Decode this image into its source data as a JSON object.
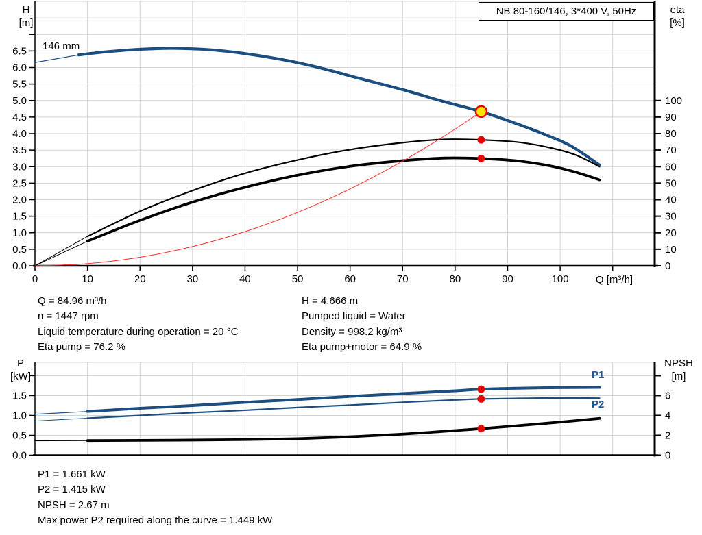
{
  "header": {
    "title": "NB 80-160/146, 3*400 V, 50Hz"
  },
  "axis_labels": {
    "h": "H",
    "h_unit": "[m]",
    "eta": "eta",
    "eta_unit": "[%]",
    "q": "Q [m³/h]",
    "p": "P",
    "p_unit": "[kW]",
    "npsh": "NPSH",
    "npsh_unit": "[m]"
  },
  "curve_labels": {
    "impeller": "146 mm",
    "p1": "P1",
    "p2": "P2"
  },
  "details_upper": {
    "left": [
      "Q = 84.96 m³/h",
      "n = 1447 rpm",
      "Liquid temperature during operation = 20 °C",
      "Eta pump = 76.2 %"
    ],
    "right": [
      "H = 4.666 m",
      "Pumped liquid = Water",
      "Density = 998.2 kg/m³",
      "Eta pump+motor = 64.9 %"
    ]
  },
  "details_lower": [
    "P1 = 1.661 kW",
    "P2 = 1.415 kW",
    "NPSH = 2.67 m",
    "Max power P2 required along the curve = 1.449 kW"
  ],
  "colors": {
    "curve_blue": "#1c4e80",
    "system_red": "#ff2a2a",
    "marker_red": "#e60000",
    "marker_yellow": "#ffe600",
    "grid": "#d3d3d3",
    "axis": "#000000"
  },
  "chart_data": [
    {
      "id": "head-flow",
      "type": "line",
      "title": "NB 80-160/146, 3*400 V, 50Hz",
      "xlabel": "Q [m³/h]",
      "ylabel_left": "H [m]",
      "ylabel_right": "eta [%]",
      "xlim": [
        0,
        118
      ],
      "ylim_left": [
        0,
        8
      ],
      "ylim_right": [
        0,
        160
      ],
      "grid": true,
      "x_grid": [
        10,
        20,
        30,
        40,
        50,
        60,
        70,
        80,
        90,
        100,
        110
      ],
      "y_grid": [
        0.5,
        1,
        1.5,
        2,
        2.5,
        3,
        3.5,
        4,
        4.5,
        5,
        5.5,
        6,
        6.5,
        7,
        7.5
      ],
      "x_ticks": [
        {
          "v": 0,
          "l": "0"
        },
        {
          "v": 10,
          "l": "10"
        },
        {
          "v": 20,
          "l": "20"
        },
        {
          "v": 30,
          "l": "30"
        },
        {
          "v": 40,
          "l": "40"
        },
        {
          "v": 50,
          "l": "50"
        },
        {
          "v": 60,
          "l": "60"
        },
        {
          "v": 70,
          "l": "70"
        },
        {
          "v": 80,
          "l": "80"
        },
        {
          "v": 90,
          "l": "90"
        },
        {
          "v": 100,
          "l": "100"
        },
        {
          "v": 110,
          "l": ""
        }
      ],
      "y_ticks_left": [
        {
          "v": 0,
          "l": "0.0"
        },
        {
          "v": 0.5,
          "l": "0.5"
        },
        {
          "v": 1,
          "l": "1.0"
        },
        {
          "v": 1.5,
          "l": "1.5"
        },
        {
          "v": 2,
          "l": "2.0"
        },
        {
          "v": 2.5,
          "l": "2.5"
        },
        {
          "v": 3,
          "l": "3.0"
        },
        {
          "v": 3.5,
          "l": "3.5"
        },
        {
          "v": 4,
          "l": "4.0"
        },
        {
          "v": 4.5,
          "l": "4.5"
        },
        {
          "v": 5,
          "l": "5.0"
        },
        {
          "v": 5.5,
          "l": "5.5"
        },
        {
          "v": 6,
          "l": "6.0"
        },
        {
          "v": 6.5,
          "l": "6.5"
        },
        {
          "v": 7,
          "l": ""
        }
      ],
      "y_ticks_right": [
        {
          "v": 0,
          "l": "0"
        },
        {
          "v": 10,
          "l": "10"
        },
        {
          "v": 20,
          "l": "20"
        },
        {
          "v": 30,
          "l": "30"
        },
        {
          "v": 40,
          "l": "40"
        },
        {
          "v": 50,
          "l": "50"
        },
        {
          "v": 60,
          "l": "60"
        },
        {
          "v": 70,
          "l": "70"
        },
        {
          "v": 80,
          "l": "80"
        },
        {
          "v": 90,
          "l": "90"
        },
        {
          "v": 100,
          "l": "100"
        }
      ],
      "series": [
        {
          "name": "H curve 146 mm impeller",
          "axis": "left",
          "color": "#1c4e80",
          "segments": [
            {
              "w": 1.2,
              "pts": [
                [
                  0,
                  6.15
                ],
                [
                  8.3,
                  6.38
                ]
              ]
            },
            {
              "w": 4.2,
              "pts": [
                [
                  8.3,
                  6.38
                ],
                [
                  14,
                  6.48
                ],
                [
                  20,
                  6.55
                ],
                [
                  26,
                  6.58
                ],
                [
                  33,
                  6.54
                ],
                [
                  40,
                  6.42
                ],
                [
                  48,
                  6.21
                ],
                [
                  55,
                  5.96
                ],
                [
                  62,
                  5.66
                ],
                [
                  70,
                  5.33
                ],
                [
                  78,
                  4.96
                ],
                [
                  84.96,
                  4.666
                ],
                [
                  91,
                  4.34
                ],
                [
                  97,
                  3.98
                ],
                [
                  102,
                  3.63
                ],
                [
                  107.5,
                  3.05
                ]
              ]
            }
          ]
        },
        {
          "name": "eta pump",
          "axis": "right",
          "color": "#000000",
          "segments": [
            {
              "w": 1,
              "pts": [
                [
                  0,
                  0
                ],
                [
                  10,
                  17.8
                ]
              ]
            },
            {
              "w": 2.2,
              "pts": [
                [
                  10,
                  17.8
                ],
                [
                  20,
                  33
                ],
                [
                  30,
                  45.5
                ],
                [
                  40,
                  56
                ],
                [
                  50,
                  64
                ],
                [
                  60,
                  70.3
                ],
                [
                  70,
                  74.5
                ],
                [
                  78,
                  76.5
                ],
                [
                  85,
                  76.2
                ],
                [
                  92,
                  74.8
                ],
                [
                  98,
                  71.5
                ],
                [
                  103,
                  67
                ],
                [
                  107.5,
                  60
                ]
              ]
            }
          ]
        },
        {
          "name": "eta pump+motor",
          "axis": "right",
          "color": "#000000",
          "segments": [
            {
              "w": 1,
              "pts": [
                [
                  0,
                  0
                ],
                [
                  10,
                  14.9
                ]
              ]
            },
            {
              "w": 3.8,
              "pts": [
                [
                  10,
                  14.9
                ],
                [
                  20,
                  27.5
                ],
                [
                  30,
                  38.5
                ],
                [
                  40,
                  47.5
                ],
                [
                  50,
                  54.8
                ],
                [
                  60,
                  60.2
                ],
                [
                  70,
                  63.6
                ],
                [
                  78,
                  65.2
                ],
                [
                  85,
                  64.9
                ],
                [
                  92,
                  63.4
                ],
                [
                  98,
                  60.5
                ],
                [
                  103,
                  56.6
                ],
                [
                  107.5,
                  52
                ]
              ]
            }
          ]
        },
        {
          "name": "system curve",
          "axis": "left",
          "color": "#ff2a2a",
          "segments": [
            {
              "w": 1,
              "pts": [
                [
                  0,
                  0
                ],
                [
                  10,
                  0.065
                ],
                [
                  20,
                  0.259
                ],
                [
                  30,
                  0.582
                ],
                [
                  40,
                  1.034
                ],
                [
                  50,
                  1.616
                ],
                [
                  60,
                  2.327
                ],
                [
                  70,
                  3.167
                ],
                [
                  78,
                  3.932
                ],
                [
                  84.96,
                  4.666
                ]
              ]
            }
          ]
        }
      ],
      "markers": [
        {
          "name": "duty-point",
          "axis": "left",
          "x": 84.96,
          "y": 4.666,
          "r": 8,
          "fill": "#ffe600",
          "stroke": "#f00000",
          "sw": 2.5,
          "interactable": true
        },
        {
          "name": "eta-pump-point",
          "axis": "right",
          "x": 84.96,
          "y": 76.2,
          "r": 5.5,
          "fill": "#e60000",
          "stroke": "none",
          "sw": 0,
          "interactable": false
        },
        {
          "name": "eta-pump-motor-point",
          "axis": "right",
          "x": 84.96,
          "y": 64.9,
          "r": 5.5,
          "fill": "#e60000",
          "stroke": "none",
          "sw": 0,
          "interactable": false
        }
      ],
      "annotations": [
        {
          "text": "146 mm",
          "target": "H curve start"
        }
      ],
      "legend_position": "none"
    },
    {
      "id": "power-npsh",
      "type": "line",
      "title": "",
      "xlabel": "",
      "ylabel_left": "P [kW]",
      "ylabel_right": "NPSH [m]",
      "xlim": [
        0,
        118
      ],
      "ylim_left": [
        0,
        2.335
      ],
      "ylim_right": [
        0,
        9.34
      ],
      "grid": true,
      "x_grid": [
        10,
        20,
        30,
        40,
        50,
        60,
        70,
        80,
        90,
        100,
        110
      ],
      "y_grid": [
        0.5,
        1,
        1.5,
        2
      ],
      "x_ticks": [],
      "y_ticks_left": [
        {
          "v": 0,
          "l": "0.0"
        },
        {
          "v": 0.5,
          "l": "0.5"
        },
        {
          "v": 1,
          "l": "1.0"
        },
        {
          "v": 1.5,
          "l": "1.5"
        },
        {
          "v": 2,
          "l": ""
        }
      ],
      "y_ticks_right": [
        {
          "v": 0,
          "l": "0"
        },
        {
          "v": 2,
          "l": "2"
        },
        {
          "v": 4,
          "l": "4"
        },
        {
          "v": 6,
          "l": "6"
        },
        {
          "v": 8,
          "l": ""
        }
      ],
      "series": [
        {
          "name": "P1",
          "axis": "left",
          "color": "#1c4e80",
          "segments": [
            {
              "w": 1.2,
              "pts": [
                [
                  0,
                  1.03
                ],
                [
                  10,
                  1.1
                ]
              ]
            },
            {
              "w": 4,
              "pts": [
                [
                  10,
                  1.1
                ],
                [
                  20,
                  1.18
                ],
                [
                  30,
                  1.25
                ],
                [
                  40,
                  1.33
                ],
                [
                  50,
                  1.4
                ],
                [
                  60,
                  1.48
                ],
                [
                  70,
                  1.55
                ],
                [
                  80,
                  1.62
                ],
                [
                  84.96,
                  1.661
                ],
                [
                  92,
                  1.685
                ],
                [
                  100,
                  1.7
                ],
                [
                  107.5,
                  1.705
                ]
              ]
            }
          ]
        },
        {
          "name": "P2",
          "axis": "left",
          "color": "#1c4e80",
          "segments": [
            {
              "w": 1,
              "pts": [
                [
                  0,
                  0.86
                ],
                [
                  10,
                  0.93
                ]
              ]
            },
            {
              "w": 2.2,
              "pts": [
                [
                  10,
                  0.93
                ],
                [
                  20,
                  1.0
                ],
                [
                  30,
                  1.07
                ],
                [
                  40,
                  1.13
                ],
                [
                  50,
                  1.2
                ],
                [
                  60,
                  1.26
                ],
                [
                  70,
                  1.33
                ],
                [
                  80,
                  1.39
                ],
                [
                  84.96,
                  1.415
                ],
                [
                  92,
                  1.43
                ],
                [
                  100,
                  1.44
                ],
                [
                  107.5,
                  1.435
                ]
              ]
            }
          ]
        },
        {
          "name": "NPSH",
          "axis": "right",
          "color": "#000000",
          "segments": [
            {
              "w": 1.2,
              "pts": [
                [
                  0,
                  1.45
                ],
                [
                  10,
                  1.47
                ]
              ]
            },
            {
              "w": 3.8,
              "pts": [
                [
                  10,
                  1.47
                ],
                [
                  20,
                  1.49
                ],
                [
                  30,
                  1.52
                ],
                [
                  40,
                  1.57
                ],
                [
                  50,
                  1.66
                ],
                [
                  60,
                  1.85
                ],
                [
                  70,
                  2.12
                ],
                [
                  80,
                  2.48
                ],
                [
                  84.96,
                  2.67
                ],
                [
                  92,
                  2.97
                ],
                [
                  100,
                  3.33
                ],
                [
                  107.5,
                  3.7
                ]
              ]
            }
          ]
        }
      ],
      "markers": [
        {
          "name": "p1-point",
          "axis": "left",
          "x": 84.96,
          "y": 1.661,
          "r": 5.5,
          "fill": "#e60000",
          "stroke": "none",
          "sw": 0,
          "interactable": false
        },
        {
          "name": "p2-point",
          "axis": "left",
          "x": 84.96,
          "y": 1.415,
          "r": 5.5,
          "fill": "#e60000",
          "stroke": "none",
          "sw": 0,
          "interactable": false
        },
        {
          "name": "npsh-point",
          "axis": "right",
          "x": 84.96,
          "y": 2.67,
          "r": 5.5,
          "fill": "#e60000",
          "stroke": "none",
          "sw": 0,
          "interactable": false
        }
      ],
      "annotations": [
        {
          "text": "P1"
        },
        {
          "text": "P2"
        }
      ],
      "legend_position": "right-inline"
    }
  ]
}
